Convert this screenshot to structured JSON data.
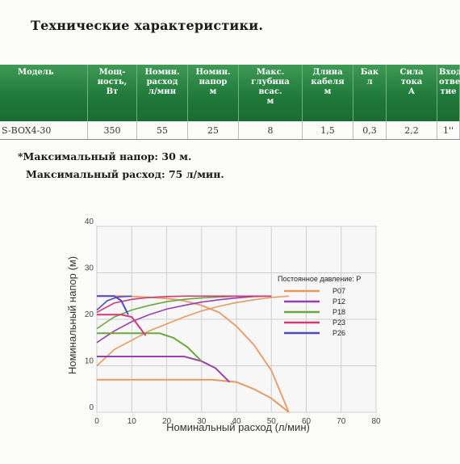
{
  "title": "Технические характеристики.",
  "table": {
    "headers": [
      "Модель",
      "Мощ-\nность,\nВт",
      "Номин.\nрасход\nл/мин",
      "Номин.\nнапор\nм",
      "Макс.\nглубина\nвсас.\nм",
      "Длина\nкабеля\nм",
      "Бак\nл",
      "Сила\nтока\nА",
      "Вход.\nотверс\nтие"
    ],
    "row": [
      "S-BOX4-30",
      "350",
      "55",
      "25",
      "8",
      "1,5",
      "0,3",
      "2,2",
      "1''"
    ]
  },
  "notes": {
    "max_head": "*Максимальный напор: 30 м.",
    "max_flow": "Максимальный расход: 75 л/мин."
  },
  "chart_data": {
    "type": "line",
    "xlabel": "Номинальный расход (л/мин)",
    "ylabel": "Номинальный напор (м)",
    "xlim": [
      0,
      80
    ],
    "ylim": [
      0,
      40
    ],
    "xticks": [
      0,
      10,
      20,
      30,
      40,
      50,
      60,
      70,
      80
    ],
    "yticks": [
      0,
      10,
      20,
      30,
      40
    ],
    "grid": true,
    "legend_title": "Постоянное давление: P",
    "legend_position": "right",
    "pump_curve": {
      "color": "#e8a070",
      "x": [
        0,
        3,
        8,
        13,
        20,
        25,
        30,
        35,
        40,
        45,
        50,
        55
      ],
      "y": [
        25,
        25,
        25,
        24.8,
        24.5,
        24,
        23,
        21.5,
        18.5,
        14.5,
        9,
        0
      ]
    },
    "series": [
      {
        "name": "P07",
        "color": "#e89a5e",
        "x": [
          0,
          30,
          33,
          40,
          45,
          50,
          55
        ],
        "y": [
          7,
          7,
          7,
          6.5,
          5,
          3,
          0
        ],
        "rise_x": [
          0,
          5,
          10,
          15,
          20,
          25,
          30,
          35,
          40,
          45,
          50,
          55
        ],
        "rise_y": [
          10,
          13.5,
          15.5,
          17.5,
          19,
          20.5,
          21.8,
          22.8,
          23.6,
          24.2,
          24.7,
          25
        ]
      },
      {
        "name": "P12",
        "color": "#9a3fb0",
        "x": [
          0,
          22,
          25,
          30,
          34,
          38
        ],
        "y": [
          12,
          12,
          12,
          11,
          9.5,
          6.5
        ],
        "rise_x": [
          0,
          5,
          10,
          15,
          20,
          25,
          30,
          35,
          40,
          45,
          50
        ],
        "rise_y": [
          15,
          17.5,
          19.5,
          21,
          22.2,
          23,
          23.7,
          24.2,
          24.6,
          24.9,
          25
        ]
      },
      {
        "name": "P18",
        "color": "#6aa83a",
        "x": [
          0,
          14,
          18,
          22,
          26,
          30
        ],
        "y": [
          17,
          17,
          17,
          16,
          14,
          11
        ],
        "rise_x": [
          0,
          5,
          10,
          15,
          20,
          25,
          30,
          35,
          40,
          45,
          50
        ],
        "rise_y": [
          18,
          20.5,
          22,
          23,
          23.8,
          24.3,
          24.6,
          24.8,
          24.95,
          25,
          25
        ]
      },
      {
        "name": "P23",
        "color": "#d13a78",
        "x": [
          0,
          7,
          10,
          12,
          14
        ],
        "y": [
          21,
          21,
          20.5,
          18.5,
          16.5
        ],
        "rise_x": [
          0,
          5,
          10,
          15,
          20,
          25,
          30,
          35,
          40,
          45,
          50
        ],
        "rise_y": [
          21.5,
          23.5,
          24.3,
          24.7,
          24.9,
          25,
          25,
          25,
          25,
          25,
          25
        ]
      },
      {
        "name": "P26",
        "color": "#4a4dc0",
        "x": [
          0,
          5,
          7,
          9
        ],
        "y": [
          25,
          25,
          24,
          21
        ],
        "rise_x": [
          0,
          3,
          6,
          10
        ],
        "rise_y": [
          22,
          24,
          24.8,
          25
        ]
      }
    ]
  }
}
